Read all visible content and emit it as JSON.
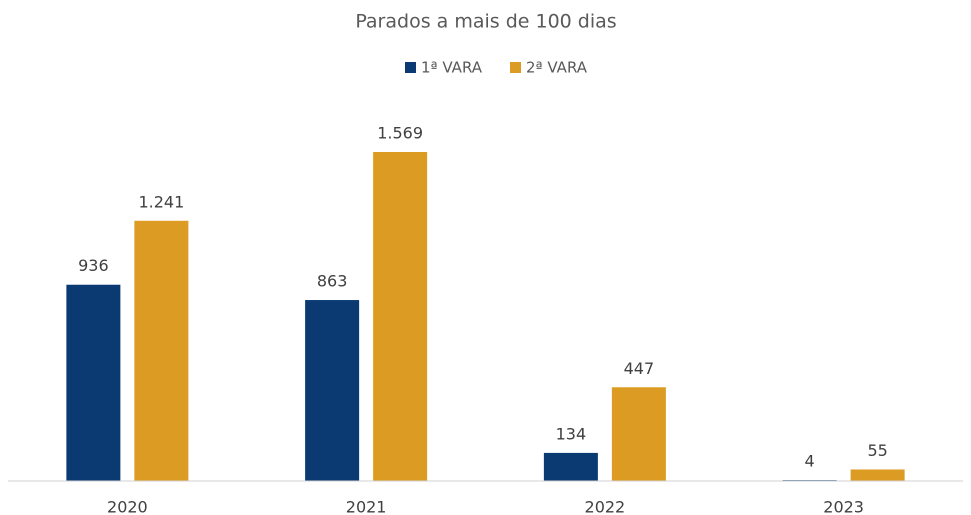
{
  "chart_data": {
    "type": "bar",
    "title": "Parados a mais de 100 dias",
    "categories": [
      "2020",
      "2021",
      "2022",
      "2023"
    ],
    "series": [
      {
        "name": "1ª VARA",
        "color": "#0b3a73",
        "values": [
          936,
          863,
          134,
          4
        ]
      },
      {
        "name": "2ª VARA",
        "color": "#dc9b22",
        "values": [
          1241,
          1569,
          447,
          55
        ],
        "value_labels": [
          "1.241",
          "1.569",
          "447",
          "55"
        ]
      }
    ],
    "legend": "top"
  }
}
